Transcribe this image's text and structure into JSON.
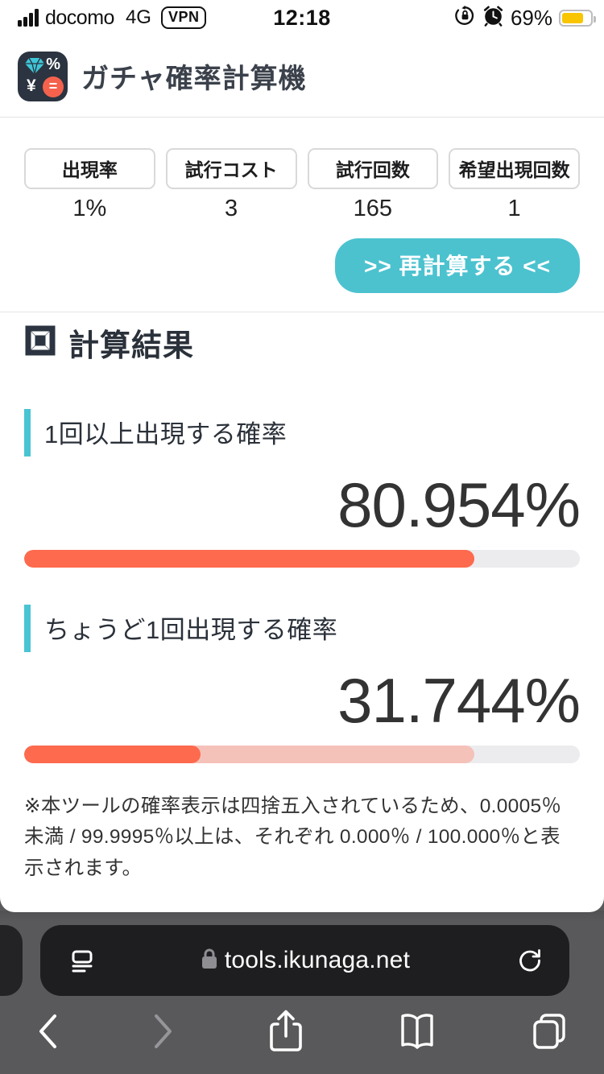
{
  "status_bar": {
    "carrier": "docomo",
    "network": "4G",
    "vpn_badge": "VPN",
    "time": "12:18",
    "battery_percent_label": "69%",
    "battery_level": 69
  },
  "header": {
    "title": "ガチャ確率計算機",
    "logo": {
      "percent": "%",
      "yen": "¥",
      "equals": "="
    }
  },
  "params": {
    "fields": [
      {
        "label": "出現率",
        "value": "1%"
      },
      {
        "label": "試行コスト",
        "value": "3"
      },
      {
        "label": "試行回数",
        "value": "165"
      },
      {
        "label": "希望出現回数",
        "value": "1"
      }
    ],
    "recalc_label": ">> 再計算する <<"
  },
  "results": {
    "heading": "計算結果",
    "items": [
      {
        "title": "1回以上出現する確率",
        "value_label": "80.954%",
        "bar_fill": 80.954,
        "bar_light": 0
      },
      {
        "title": "ちょうど1回出現する確率",
        "value_label": "31.744%",
        "bar_fill": 31.744,
        "bar_light": 80.954
      }
    ]
  },
  "note": "※本ツールの確率表示は四捨五入されているため、0.0005％未満 / 99.9995％以上は、それぞれ 0.000％ / 100.000％と表示されます。",
  "browser": {
    "url": "tools.ikunaga.net"
  },
  "colors": {
    "teal": "#4cc2cf",
    "teal_accent": "#49c4d3",
    "coral": "#fd6a4e",
    "coral_light": "#f5c2ba",
    "track_gray": "#ececee",
    "navy": "#2b3440",
    "battery_yellow": "#f8c500"
  }
}
